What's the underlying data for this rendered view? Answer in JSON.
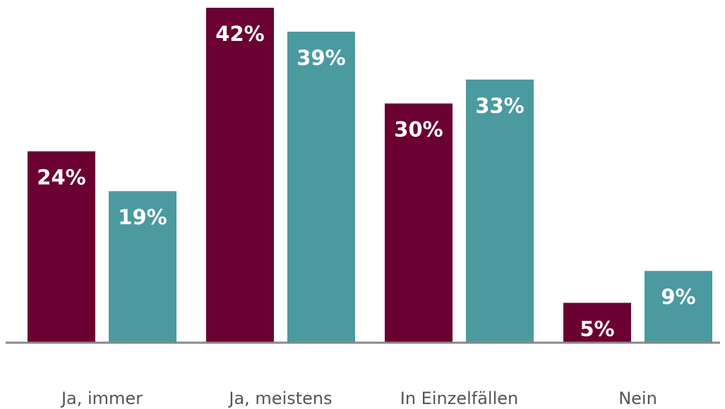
{
  "chart_data": {
    "type": "bar",
    "categories": [
      "Ja, immer",
      "Ja, meistens",
      "In Einzelfällen",
      "Nein"
    ],
    "series": [
      {
        "color": "#6b0033",
        "values": [
          24,
          42,
          30,
          5
        ],
        "value_labels": [
          "24%",
          "42%",
          "30%",
          "5%"
        ]
      },
      {
        "color": "#4a9aa0",
        "values": [
          19,
          39,
          33,
          9
        ],
        "value_labels": [
          "19%",
          "39%",
          "33%",
          "9%"
        ]
      }
    ],
    "ylim": [
      0,
      42
    ]
  }
}
